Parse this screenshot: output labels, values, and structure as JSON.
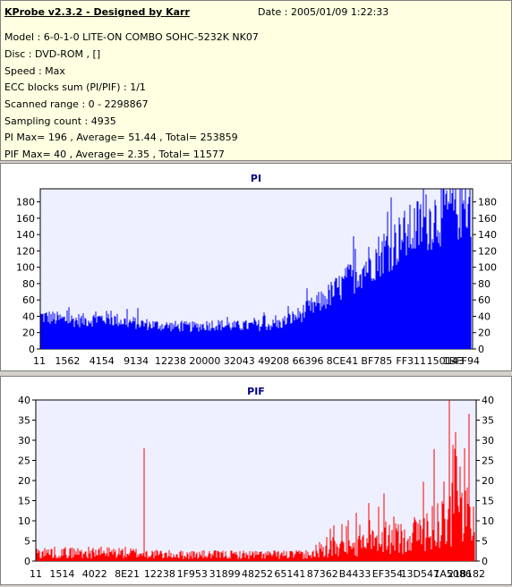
{
  "header": {
    "title": "KProbe v2.3.2 - Designed by Karr",
    "date": "Date : 2005/01/09 1:22:33",
    "lines": [
      "Model : 6-0-1-0 LITE-ON COMBO SOHC-5232K NK07",
      "Disc : DVD-ROM ,  []",
      "Speed : Max",
      "ECC blocks sum (PI/PIF) : 1/1",
      "Scanned range : 0 - 2298867",
      "Sampling count : 4935",
      "PI Max= 196 , Average= 51.44 , Total= 253859",
      "PIF Max= 40 , Average= 2.35 , Total= 11577"
    ]
  },
  "colors": {
    "pi_fill": "#0000ff",
    "pif_fill": "#ff0000",
    "plot_bg": "#eef0ff",
    "title": "#000080"
  },
  "chart_data": [
    {
      "type": "area",
      "title": "PI",
      "ylim": [
        0,
        196
      ],
      "yticks": [
        0,
        20,
        40,
        60,
        80,
        100,
        120,
        140,
        160,
        180
      ],
      "xtick_labels": [
        "11",
        "1562",
        "4154",
        "9134",
        "12238",
        "20000",
        "32043",
        "49208",
        "66396",
        "8CE41",
        "BF785",
        "FF311",
        "150143",
        "1BFF94"
      ],
      "grid": false,
      "profile": {
        "x": [
          0,
          0.05,
          0.1,
          0.15,
          0.2,
          0.25,
          0.3,
          0.35,
          0.4,
          0.45,
          0.5,
          0.55,
          0.6,
          0.65,
          0.7,
          0.75,
          0.8,
          0.85,
          0.9,
          0.95,
          1.0
        ],
        "y": [
          40,
          36,
          35,
          38,
          33,
          30,
          28,
          27,
          30,
          28,
          29,
          30,
          42,
          58,
          78,
          100,
          122,
          140,
          158,
          172,
          176
        ]
      },
      "max": 196
    },
    {
      "type": "area",
      "title": "PIF",
      "ylim": [
        0,
        40
      ],
      "yticks": [
        0,
        5,
        10,
        15,
        20,
        25,
        30,
        35,
        40
      ],
      "xtick_labels": [
        "11",
        "1514",
        "4022",
        "8E21",
        "12238",
        "1F953",
        "31899",
        "48252",
        "65141",
        "87362",
        "B4433",
        "EF354",
        "13D547",
        "1A5086",
        "218182"
      ],
      "grid": false,
      "profile": {
        "x": [
          0,
          0.1,
          0.2,
          0.3,
          0.4,
          0.5,
          0.6,
          0.65,
          0.7,
          0.75,
          0.8,
          0.85,
          0.9,
          0.95,
          1.0
        ],
        "y": [
          2,
          2,
          2,
          1.5,
          1.5,
          1.5,
          1.5,
          2,
          3,
          4,
          5,
          6,
          8,
          11,
          12
        ]
      },
      "spikes": [
        {
          "x": 0.245,
          "y": 28
        },
        {
          "x": 0.94,
          "y": 40
        },
        {
          "x": 0.955,
          "y": 32
        },
        {
          "x": 0.975,
          "y": 28
        }
      ],
      "max": 40
    }
  ]
}
